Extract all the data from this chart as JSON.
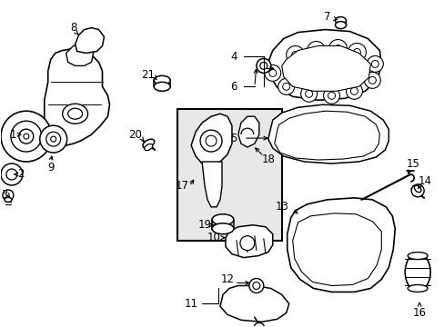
{
  "background_color": "#ffffff",
  "line_color": "#000000",
  "text_color": "#000000",
  "box_fill": "#e8e8e8",
  "fig_width": 4.89,
  "fig_height": 3.6,
  "dpi": 100,
  "font_size": 8.5,
  "leader_font_size": 8.5
}
